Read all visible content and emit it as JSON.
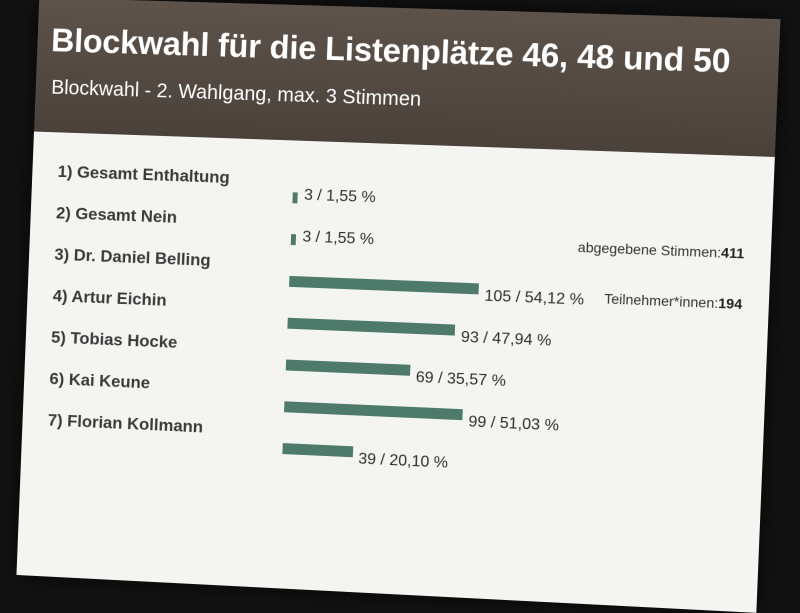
{
  "chart_data": {
    "type": "bar",
    "orientation": "horizontal",
    "title": "Blockwahl für die Listenplätze  46, 48 und 50",
    "subtitle": "Blockwahl - 2. Wahlgang,  max. 3 Stimmen",
    "categories": [
      "1) Gesamt Enthaltung",
      "2) Gesamt Nein",
      "3) Dr. Daniel Belling",
      "4) Artur Eichin",
      "5) Tobias Hocke",
      "6) Kai Keune",
      "7) Florian Kollmann"
    ],
    "values": [
      3,
      3,
      105,
      93,
      69,
      99,
      39
    ],
    "percents": [
      1.55,
      1.55,
      54.12,
      47.94,
      35.57,
      51.03,
      20.1
    ],
    "value_labels": [
      "3 / 1,55 %",
      "3 / 1,55 %",
      "105 / 54,12 %",
      "93 / 47,94 %",
      "69 / 35,57 %",
      "99 / 51,03 %",
      "39 / 20,10 %"
    ],
    "bar_color": "#4e7a6c"
  },
  "stats": {
    "votes_label": "abgegebene Stimmen:",
    "votes_value": "411",
    "participants_label": "Teilnehmer*innen:",
    "participants_value": "194"
  }
}
